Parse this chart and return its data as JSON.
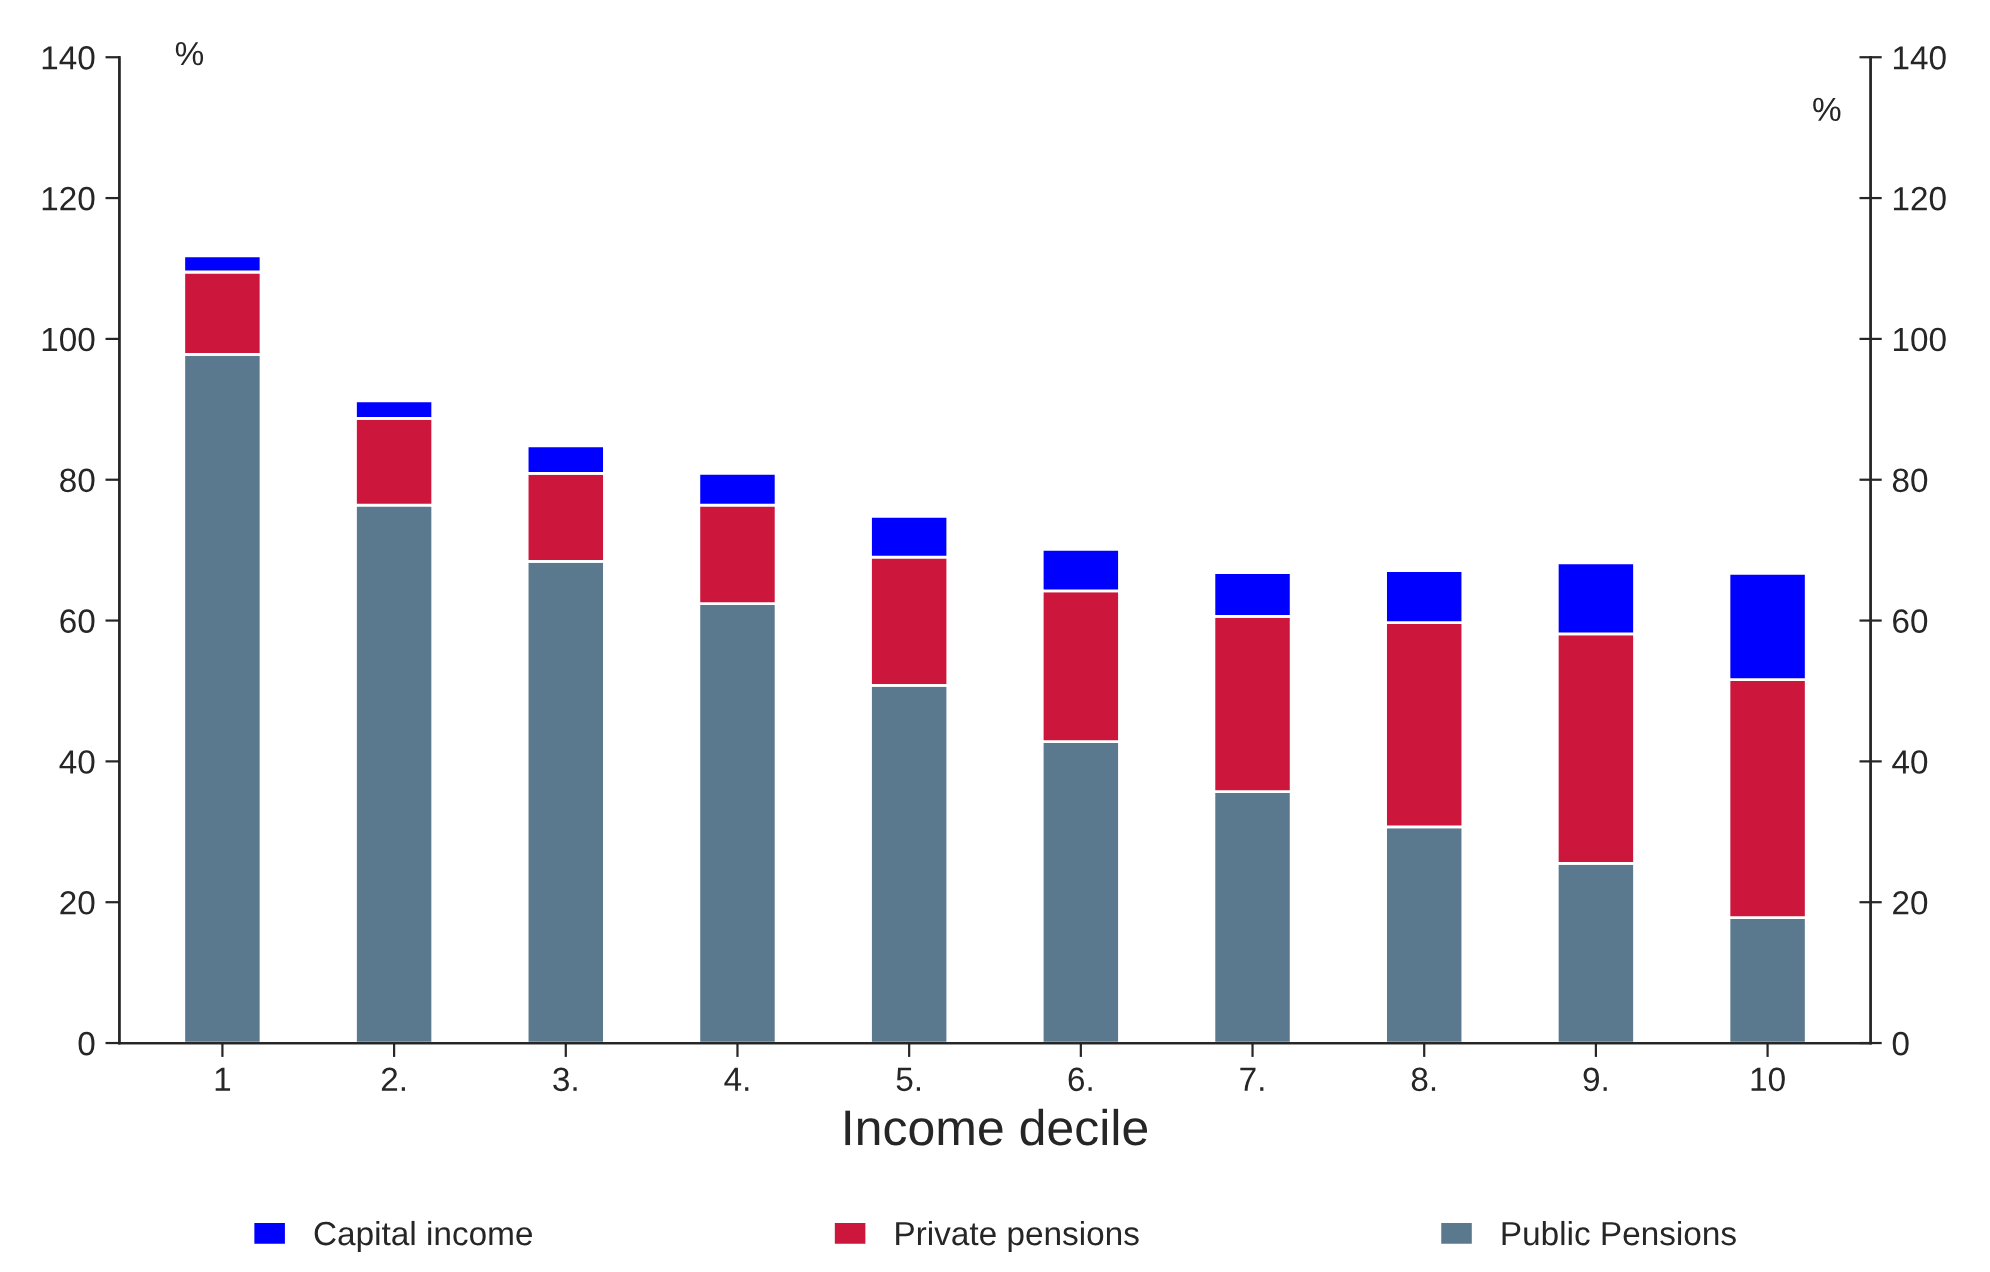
{
  "chart_data": {
    "type": "bar",
    "xlabel": "Income decile",
    "ylabel": "%",
    "y2label": "%",
    "categories": [
      "1",
      "2.",
      "3.",
      "4.",
      "5.",
      "6.",
      "7.",
      "8.",
      "9.",
      "10"
    ],
    "stacked": true,
    "series": [
      {
        "name": "Public Pensions",
        "color": "#5a788e",
        "values": [
          97.8,
          76.4,
          68.4,
          62.4,
          50.8,
          42.8,
          35.7,
          30.7,
          25.5,
          17.8
        ]
      },
      {
        "name": "Private pensions",
        "color": "#cc163c",
        "values": [
          11.7,
          12.3,
          12.5,
          14.0,
          18.2,
          21.4,
          24.9,
          29.0,
          32.6,
          33.8
        ]
      },
      {
        "name": "Capital income",
        "color": "#0000ff",
        "values": [
          2.3,
          2.5,
          3.9,
          4.5,
          5.8,
          5.9,
          6.2,
          7.4,
          10.1,
          15.1
        ]
      }
    ],
    "ylim": [
      0,
      140
    ],
    "yticks": [
      0,
      20,
      40,
      60,
      80,
      100,
      120,
      140
    ],
    "y2lim": [
      0,
      140
    ],
    "y2ticks": [
      0,
      20,
      40,
      60,
      80,
      100,
      120,
      140
    ],
    "grid": false,
    "legend": "bottom"
  }
}
